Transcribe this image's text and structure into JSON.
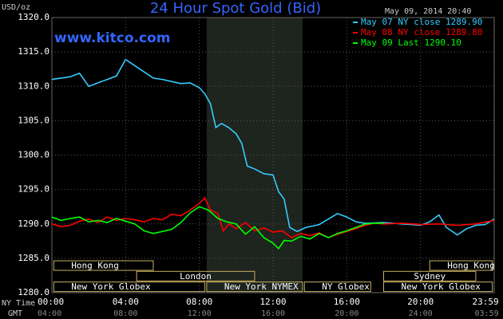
{
  "chart_data": {
    "type": "line",
    "title": "24 Hour Spot Gold (Bid)",
    "unit_label": "USD/oz",
    "site": "www.kitco.com",
    "timestamp": "May 09, 2014 20:40",
    "xaxis_label": "NY Time",
    "x2axis_label": "GMT",
    "xlim": [
      0,
      24
    ],
    "xticks": [
      {
        "value": 0,
        "label": "00:00"
      },
      {
        "value": 4,
        "label": "04:00"
      },
      {
        "value": 8,
        "label": "08:00"
      },
      {
        "value": 12,
        "label": "12:00"
      },
      {
        "value": 16,
        "label": "16:00"
      },
      {
        "value": 20,
        "label": "20:00"
      },
      {
        "value": 23.983,
        "label": "23:59"
      }
    ],
    "x2ticks": [
      {
        "value": 0,
        "label": "04:00"
      },
      {
        "value": 4,
        "label": "08:00"
      },
      {
        "value": 8,
        "label": "12:00"
      },
      {
        "value": 12,
        "label": "16:00"
      },
      {
        "value": 16,
        "label": "20:00"
      },
      {
        "value": 20,
        "label": "24:00"
      },
      {
        "value": 23.983,
        "label": "03:59"
      }
    ],
    "ylim": [
      1280,
      1320
    ],
    "yticks": [
      {
        "value": 1280,
        "label": "1280.0"
      },
      {
        "value": 1285,
        "label": "1285.0"
      },
      {
        "value": 1290,
        "label": "1290.0"
      },
      {
        "value": 1295,
        "label": "1295.0"
      },
      {
        "value": 1300,
        "label": "1300.0"
      },
      {
        "value": 1305,
        "label": "1305.0"
      },
      {
        "value": 1310,
        "label": "1310.0"
      },
      {
        "value": 1315,
        "label": "1315.0"
      },
      {
        "value": 1320,
        "label": "1320.0"
      }
    ],
    "grid": true,
    "legend": "top-right",
    "sessions": [
      {
        "name": "Hong Kong",
        "start": 0.1,
        "end": 5.5,
        "row": 0
      },
      {
        "name": "London",
        "start": 4.6,
        "end": 11.0,
        "row": 1
      },
      {
        "name": "New York Globex",
        "start": 0.1,
        "end": 8.3,
        "row": 2
      },
      {
        "name": "New York NYMEX",
        "start": 8.4,
        "end": 13.6,
        "row": 2,
        "shaded": true
      },
      {
        "name": "NY Globex",
        "start": 13.7,
        "end": 17.3,
        "row": 2
      },
      {
        "name": "Sydney",
        "start": 18.0,
        "end": 23.0,
        "row": 1
      },
      {
        "name": "Hong Kong",
        "start": 20.5,
        "end": 23.9,
        "row": 0
      },
      {
        "name": "New York Globex",
        "start": 18.0,
        "end": 23.9,
        "row": 2
      }
    ],
    "series": [
      {
        "name": "May 07 NY close 1289.90",
        "color": "#33ccff",
        "x": [
          0,
          0.5,
          1,
          1.5,
          2,
          2.5,
          3,
          3.5,
          4,
          4.5,
          5,
          5.5,
          6,
          6.5,
          7,
          7.5,
          8,
          8.3,
          8.6,
          8.9,
          9.2,
          9.6,
          10,
          10.3,
          10.6,
          11,
          11.5,
          12,
          12.3,
          12.6,
          12.9,
          13.3,
          13.8,
          14.5,
          15,
          15.5,
          16,
          16.5,
          17,
          18,
          19,
          20,
          20.5,
          21,
          21.4,
          22,
          22.5,
          23,
          23.5,
          24
        ],
        "values": [
          1311.0,
          1311.2,
          1311.4,
          1311.9,
          1310.0,
          1310.5,
          1311.0,
          1311.5,
          1313.9,
          1313.0,
          1312.1,
          1311.2,
          1311.0,
          1310.7,
          1310.4,
          1310.5,
          1309.8,
          1308.9,
          1307.5,
          1304.0,
          1304.6,
          1304.0,
          1303.1,
          1301.7,
          1298.4,
          1298.0,
          1297.3,
          1297.1,
          1294.7,
          1293.6,
          1289.5,
          1288.9,
          1289.5,
          1289.9,
          1290.7,
          1291.5,
          1291.0,
          1290.3,
          1290.1,
          1290.2,
          1290.0,
          1289.8,
          1290.3,
          1291.3,
          1289.5,
          1288.4,
          1289.3,
          1289.8,
          1289.9,
          1290.7
        ]
      },
      {
        "name": "May 08 NY close 1289.80",
        "color": "#ff0000",
        "x": [
          0,
          0.5,
          1,
          1.5,
          2,
          2.5,
          3,
          3.5,
          4,
          4.5,
          5,
          5.5,
          6,
          6.5,
          7,
          7.5,
          8,
          8.3,
          8.6,
          9,
          9.3,
          9.6,
          10,
          10.5,
          11,
          11.5,
          12,
          12.5,
          13,
          13.5,
          14,
          14.5,
          15,
          15.5,
          16,
          16.5,
          17,
          17.5,
          18,
          19,
          20,
          21,
          22,
          23,
          24
        ],
        "values": [
          1290.0,
          1289.6,
          1289.8,
          1290.4,
          1290.7,
          1290.2,
          1291.0,
          1290.5,
          1290.8,
          1290.6,
          1290.3,
          1290.8,
          1290.6,
          1291.4,
          1291.2,
          1292.0,
          1293.0,
          1293.8,
          1292.0,
          1291.5,
          1289.0,
          1290.0,
          1289.3,
          1290.2,
          1289.0,
          1289.4,
          1288.8,
          1289.0,
          1288.0,
          1288.6,
          1288.3,
          1288.7,
          1288.0,
          1288.5,
          1288.9,
          1289.3,
          1289.8,
          1290.1,
          1290.0,
          1290.1,
          1289.9,
          1290.0,
          1289.8,
          1290.0,
          1290.5
        ]
      },
      {
        "name": "May 09 Last 1290.10",
        "color": "#00ff00",
        "x": [
          0,
          0.5,
          1,
          1.5,
          2,
          2.5,
          3,
          3.5,
          4,
          4.5,
          5,
          5.5,
          6,
          6.5,
          7,
          7.5,
          8,
          8.5,
          9,
          9.5,
          10,
          10.5,
          11,
          11.5,
          12,
          12.3,
          12.6,
          13,
          13.5,
          14,
          14.5,
          15,
          15.5,
          16,
          16.5,
          17,
          17.5,
          18
        ],
        "values": [
          1291.0,
          1290.5,
          1290.8,
          1291.0,
          1290.3,
          1290.5,
          1290.2,
          1290.8,
          1290.4,
          1290.0,
          1289.0,
          1288.6,
          1288.9,
          1289.2,
          1290.2,
          1291.6,
          1292.5,
          1292.0,
          1290.8,
          1290.3,
          1290.0,
          1288.5,
          1289.6,
          1288.0,
          1287.2,
          1286.4,
          1287.6,
          1287.5,
          1288.2,
          1287.8,
          1288.6,
          1288.0,
          1288.6,
          1289.0,
          1289.5,
          1290.0,
          1290.1,
          1290.1
        ]
      }
    ]
  }
}
